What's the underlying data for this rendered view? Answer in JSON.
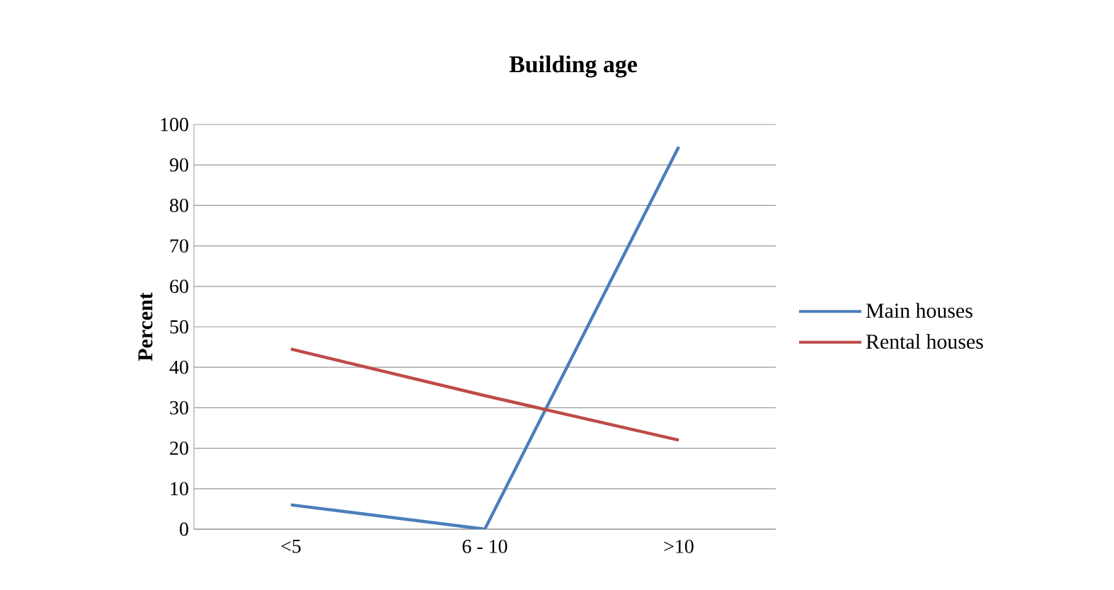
{
  "chart_data": {
    "type": "line",
    "title": "Building age",
    "ylabel": "Percent",
    "categories": [
      "<5",
      "6 - 10",
      ">10"
    ],
    "series": [
      {
        "name": "Main houses",
        "color": "#4a7ebb",
        "values": [
          6,
          0,
          94.5
        ]
      },
      {
        "name": "Rental houses",
        "color": "#be4b48",
        "values": [
          44.5,
          33,
          22
        ]
      }
    ],
    "ylim": [
      0,
      100
    ],
    "yticks": [
      0,
      10,
      20,
      30,
      40,
      50,
      60,
      70,
      80,
      90,
      100
    ],
    "grid": "y",
    "legend": "right",
    "marker": "none",
    "line_style": "solid"
  }
}
